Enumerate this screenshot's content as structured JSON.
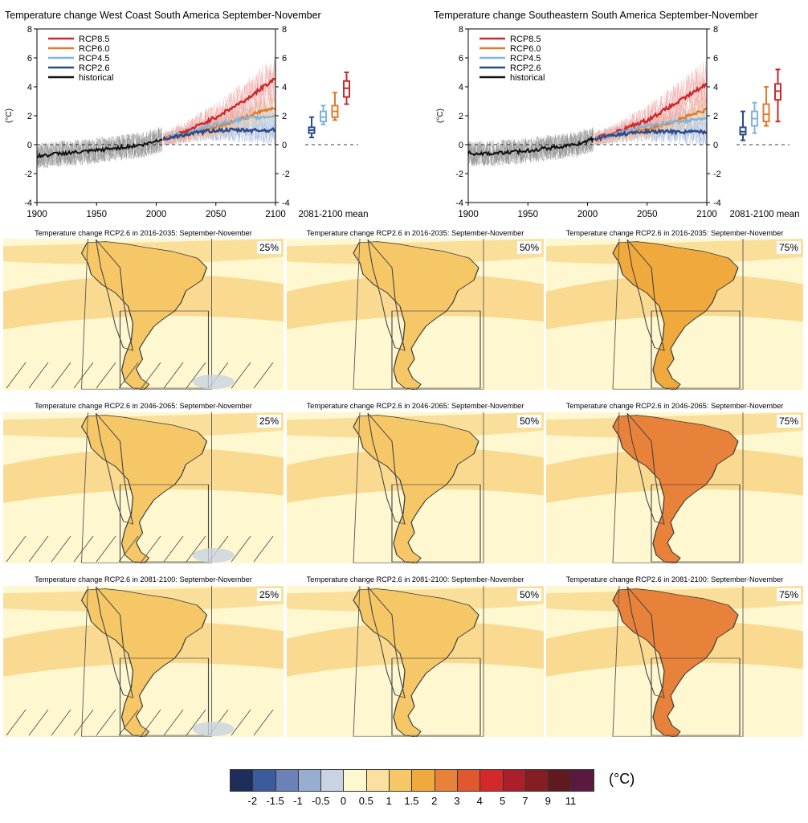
{
  "chart_data": [
    {
      "type": "line",
      "title": "Temperature change West Coast South America September-November",
      "ylabel": "(°C)",
      "xlim": [
        1900,
        2100
      ],
      "ylim": [
        -4,
        8
      ],
      "x_ticks": [
        "1900",
        "1950",
        "2000",
        "2050",
        "2100"
      ],
      "y_ticks": [
        "-4",
        "-2",
        "0",
        "2",
        "4",
        "6",
        "8"
      ],
      "legend_position": "top-left",
      "boxplot_label": "2081-2100 mean",
      "series": [
        {
          "name": "RCP8.5",
          "color": "#cc2a2a",
          "x": [
            2006,
            2025,
            2050,
            2075,
            2100
          ],
          "y": [
            0.4,
            0.9,
            1.9,
            3.1,
            4.6
          ]
        },
        {
          "name": "RCP6.0",
          "color": "#e07a2d",
          "x": [
            2006,
            2025,
            2050,
            2075,
            2100
          ],
          "y": [
            0.4,
            0.7,
            1.2,
            1.9,
            2.6
          ]
        },
        {
          "name": "RCP4.5",
          "color": "#7fb4dd",
          "x": [
            2006,
            2025,
            2050,
            2075,
            2100
          ],
          "y": [
            0.4,
            0.8,
            1.4,
            1.8,
            2.0
          ]
        },
        {
          "name": "RCP2.6",
          "color": "#2b4a8b",
          "x": [
            2006,
            2025,
            2050,
            2075,
            2100
          ],
          "y": [
            0.4,
            0.7,
            1.0,
            1.0,
            1.0
          ]
        },
        {
          "name": "historical",
          "color": "#111111",
          "x": [
            1900,
            1920,
            1940,
            1960,
            1980,
            1990,
            2005
          ],
          "y": [
            -0.8,
            -0.6,
            -0.5,
            -0.3,
            -0.1,
            0.0,
            0.4
          ]
        }
      ],
      "boxplots": [
        {
          "series": "RCP2.6",
          "min": 0.5,
          "q1": 0.8,
          "median": 1.0,
          "q3": 1.2,
          "max": 1.9
        },
        {
          "series": "RCP4.5",
          "min": 1.4,
          "q1": 1.6,
          "median": 1.9,
          "q3": 2.3,
          "max": 2.7
        },
        {
          "series": "RCP6.0",
          "min": 1.7,
          "q1": 1.9,
          "median": 2.3,
          "q3": 2.7,
          "max": 3.6
        },
        {
          "series": "RCP8.5",
          "min": 2.8,
          "q1": 3.3,
          "median": 3.9,
          "q3": 4.4,
          "max": 5.0
        }
      ]
    },
    {
      "type": "line",
      "title": "Temperature change Southeastern South America September-November",
      "ylabel": "(°C)",
      "xlim": [
        1900,
        2100
      ],
      "ylim": [
        -4,
        8
      ],
      "x_ticks": [
        "1900",
        "1950",
        "2000",
        "2050",
        "2100"
      ],
      "y_ticks": [
        "-4",
        "-2",
        "0",
        "2",
        "4",
        "6",
        "8"
      ],
      "legend_position": "top-left",
      "boxplot_label": "2081-2100 mean",
      "series": [
        {
          "name": "RCP8.5",
          "color": "#cc2a2a",
          "x": [
            2006,
            2025,
            2050,
            2075,
            2100
          ],
          "y": [
            0.4,
            0.9,
            1.7,
            2.9,
            4.2
          ]
        },
        {
          "name": "RCP6.0",
          "color": "#e07a2d",
          "x": [
            2006,
            2025,
            2050,
            2075,
            2100
          ],
          "y": [
            0.4,
            0.7,
            1.1,
            1.7,
            2.4
          ]
        },
        {
          "name": "RCP4.5",
          "color": "#7fb4dd",
          "x": [
            2006,
            2025,
            2050,
            2075,
            2100
          ],
          "y": [
            0.4,
            0.8,
            1.3,
            1.6,
            1.8
          ]
        },
        {
          "name": "RCP2.6",
          "color": "#2b4a8b",
          "x": [
            2006,
            2025,
            2050,
            2075,
            2100
          ],
          "y": [
            0.4,
            0.7,
            0.9,
            0.9,
            0.9
          ]
        },
        {
          "name": "historical",
          "color": "#111111",
          "x": [
            1900,
            1920,
            1940,
            1960,
            1980,
            1990,
            2005
          ],
          "y": [
            -0.6,
            -0.6,
            -0.5,
            -0.3,
            -0.1,
            0.0,
            0.4
          ]
        }
      ],
      "boxplots": [
        {
          "series": "RCP2.6",
          "min": 0.3,
          "q1": 0.7,
          "median": 0.9,
          "q3": 1.2,
          "max": 2.3
        },
        {
          "series": "RCP4.5",
          "min": 0.8,
          "q1": 1.3,
          "median": 1.8,
          "q3": 2.3,
          "max": 2.9
        },
        {
          "series": "RCP6.0",
          "min": 1.3,
          "q1": 1.6,
          "median": 2.1,
          "q3": 2.8,
          "max": 4.0
        },
        {
          "series": "RCP8.5",
          "min": 1.6,
          "q1": 3.1,
          "median": 3.7,
          "q3": 4.2,
          "max": 5.2
        }
      ]
    },
    {
      "type": "heatmap",
      "panels": [
        {
          "title": "Temperature change RCP2.6 in 2016-2035: September-November",
          "percentile": "25%",
          "land_class": "1"
        },
        {
          "title": "Temperature change RCP2.6 in 2016-2035: September-November",
          "percentile": "50%",
          "land_class": "1"
        },
        {
          "title": "Temperature change RCP2.6 in 2016-2035: September-November",
          "percentile": "75%",
          "land_class": "1.5"
        },
        {
          "title": "Temperature change RCP2.6 in 2046-2065: September-November",
          "percentile": "25%",
          "land_class": "1"
        },
        {
          "title": "Temperature change RCP2.6 in 2046-2065: September-November",
          "percentile": "50%",
          "land_class": "1"
        },
        {
          "title": "Temperature change RCP2.6 in 2046-2065: September-November",
          "percentile": "75%",
          "land_class": "2"
        },
        {
          "title": "Temperature change RCP2.6 in 2081-2100: September-November",
          "percentile": "25%",
          "land_class": "1"
        },
        {
          "title": "Temperature change RCP2.6 in 2081-2100: September-November",
          "percentile": "50%",
          "land_class": "1"
        },
        {
          "title": "Temperature change RCP2.6 in 2081-2100: September-November",
          "percentile": "75%",
          "land_class": "2"
        }
      ],
      "colorbar": {
        "unit": "(°C)",
        "colors": [
          "#1f2d5a",
          "#3a5b9c",
          "#6b82b6",
          "#98aed1",
          "#c9d3e2",
          "#fef7cf",
          "#fbe0a0",
          "#f6c767",
          "#f0a93c",
          "#e8813a",
          "#e1572e",
          "#d3292b",
          "#ab1f2a",
          "#851d25",
          "#5e1a1f",
          "#5a1a3f"
        ],
        "labels": [
          "-2",
          "-1.5",
          "-1",
          "-0.5",
          "0",
          "0.5",
          "1",
          "1.5",
          "2",
          "3",
          "4",
          "5",
          "7",
          "9",
          "11"
        ]
      }
    }
  ]
}
